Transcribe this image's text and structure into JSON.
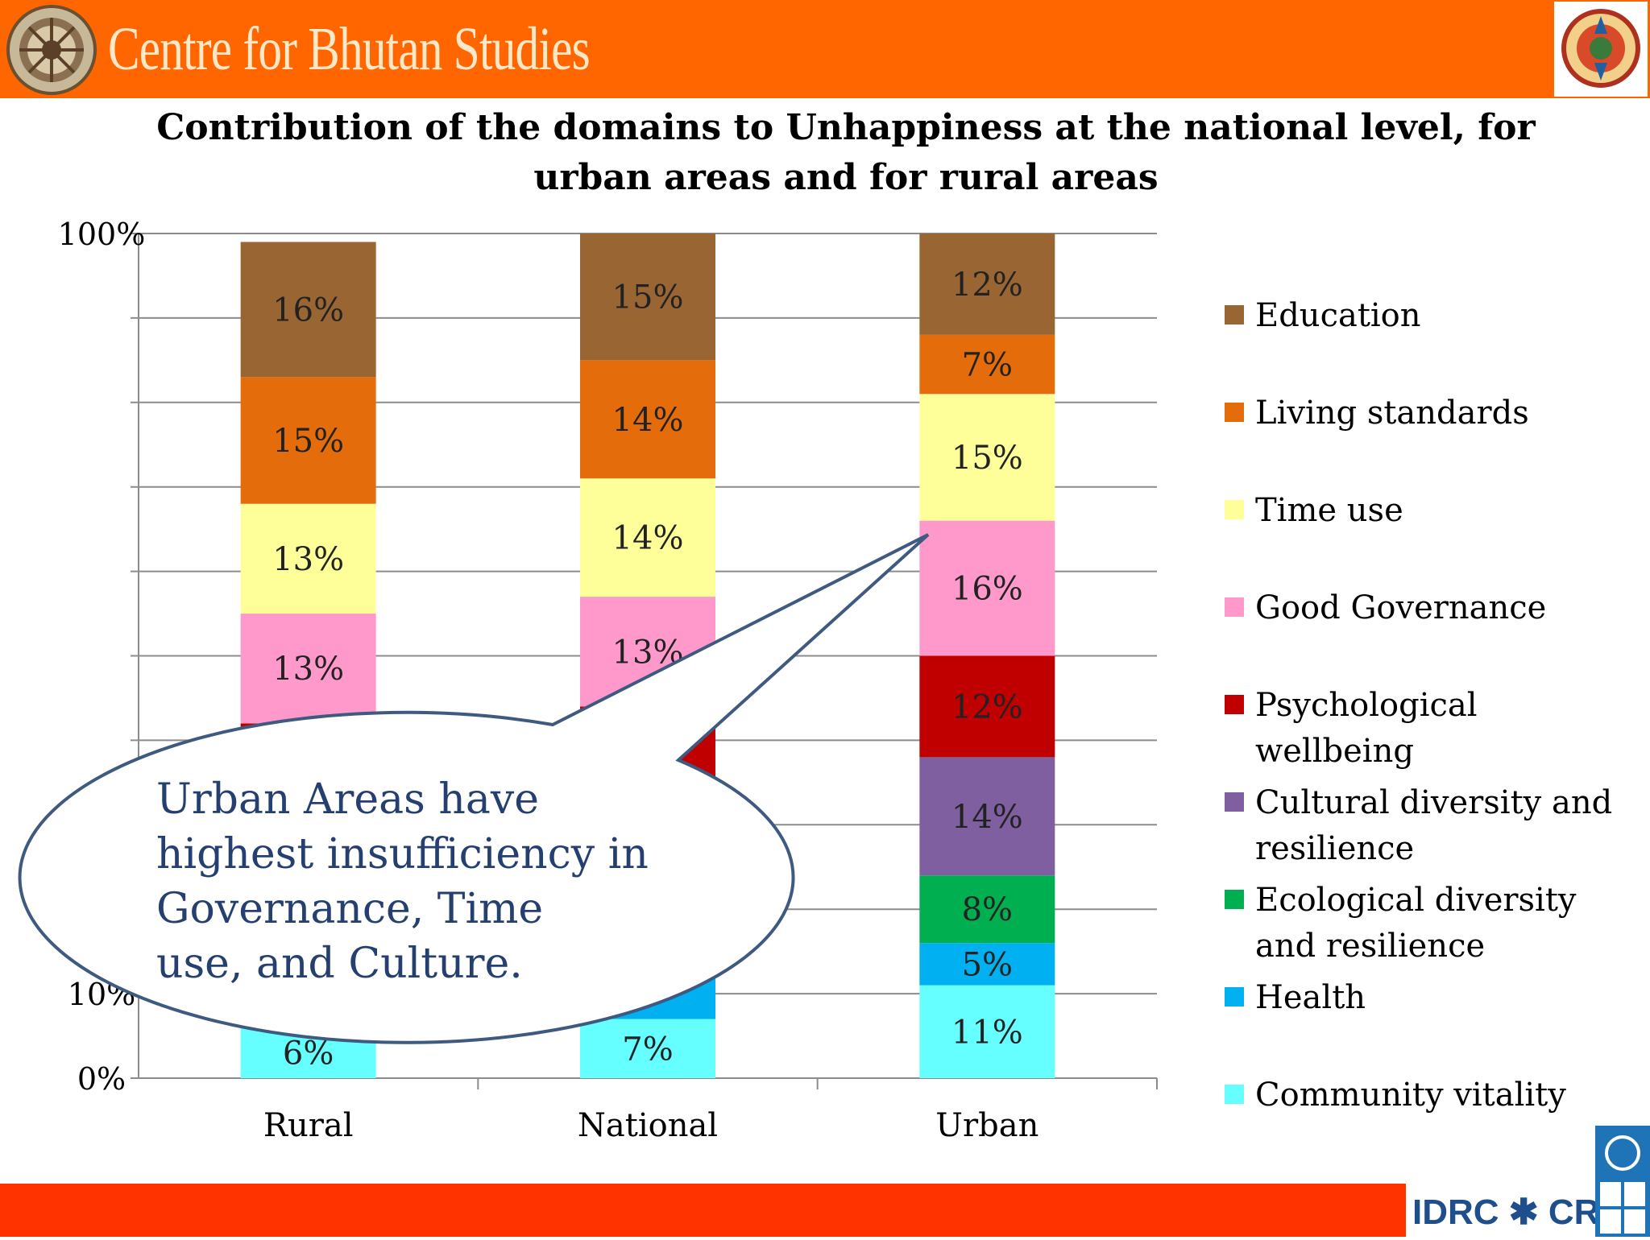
{
  "header": {
    "brand": "Centre for Bhutan Studies"
  },
  "chart_data": {
    "type": "bar",
    "stacked": true,
    "title": "Contribution of the domains to Unhappiness at the national level, for urban areas and for rural areas",
    "categories": [
      "Rural",
      "National",
      "Urban"
    ],
    "y_ticks": [
      "0%",
      "10%",
      "100%"
    ],
    "ylim": [
      0,
      100
    ],
    "legend_position": "right",
    "series": [
      {
        "name": "Community vitality",
        "color": "#66ffff",
        "values": [
          6,
          7,
          11
        ],
        "labels": [
          "6%",
          "7%",
          "11%"
        ]
      },
      {
        "name": "Health",
        "color": "#00b0f0",
        "values": [
          5,
          5,
          5
        ],
        "labels": [
          "",
          "",
          "5%"
        ]
      },
      {
        "name": "Ecological diversity and resilience",
        "color": "#00b050",
        "values": [
          9,
          9,
          8
        ],
        "labels": [
          "",
          "",
          "8%"
        ]
      },
      {
        "name": "Cultural diversity and resilience",
        "color": "#7f5fa0",
        "values": [
          13,
          11,
          14
        ],
        "labels": [
          "",
          "",
          "14%"
        ]
      },
      {
        "name": "Psychological wellbeing",
        "color": "#c00000",
        "values": [
          9,
          12,
          12
        ],
        "labels": [
          "",
          "",
          "12%"
        ]
      },
      {
        "name": "Good Governance",
        "color": "#ff99cc",
        "values": [
          13,
          13,
          16
        ],
        "labels": [
          "13%",
          "13%",
          "16%"
        ]
      },
      {
        "name": "Time use",
        "color": "#ffff99",
        "values": [
          13,
          14,
          15
        ],
        "labels": [
          "13%",
          "14%",
          "15%"
        ]
      },
      {
        "name": "Living standards",
        "color": "#e46c0a",
        "values": [
          15,
          14,
          7
        ],
        "labels": [
          "15%",
          "14%",
          "7%"
        ]
      },
      {
        "name": "Education",
        "color": "#996633",
        "values": [
          16,
          15,
          12
        ],
        "labels": [
          "16%",
          "15%",
          "12%"
        ]
      }
    ],
    "legend_lines": [
      [
        "Education"
      ],
      [
        "Living standards"
      ],
      [
        "Time use"
      ],
      [
        "Good Governance"
      ],
      [
        "Psychological",
        "wellbeing"
      ],
      [
        "Cultural diversity and",
        "resilience"
      ],
      [
        "Ecological diversity",
        "and resilience"
      ],
      [
        "Health"
      ],
      [
        "Community vitality"
      ]
    ],
    "annotation": {
      "lines": [
        "Urban Areas have",
        "highest insufficiency in",
        "Governance, Time",
        "use, and Culture."
      ]
    }
  },
  "footer": {
    "logo_text": "IDRC ✱ CRDI"
  }
}
